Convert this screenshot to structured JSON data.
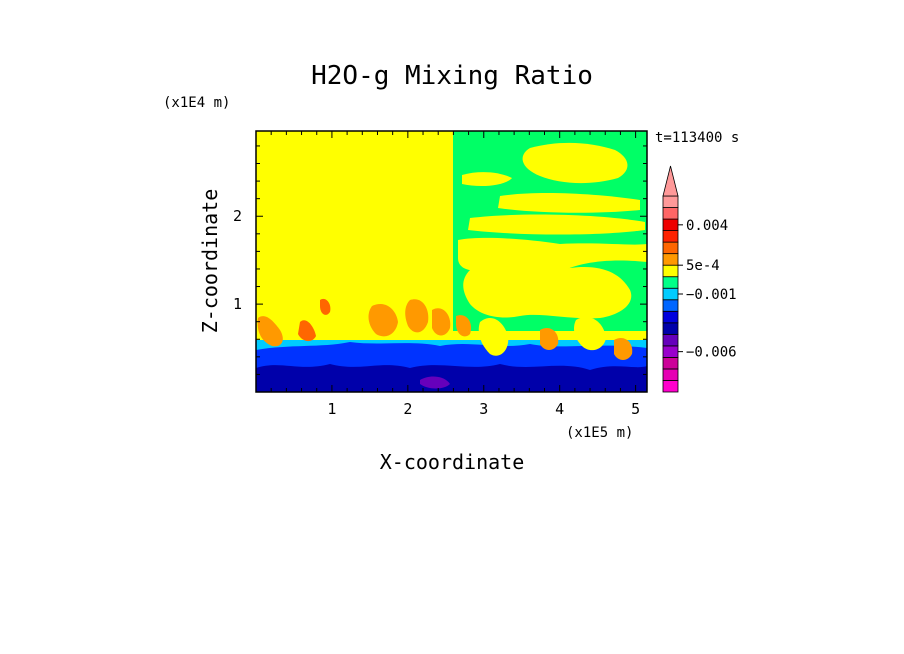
{
  "chart_data": {
    "type": "heatmap",
    "title": "H2O-g Mixing Ratio",
    "xlabel": "X-coordinate",
    "ylabel": "Z-coordinate",
    "x_scale_label": "(x1E5 m)",
    "y_scale_label": "(x1E4 m)",
    "time_label": "t=113400 s",
    "xlim": [
      0.0,
      5.15
    ],
    "ylim": [
      0.0,
      2.97
    ],
    "x_ticks": [
      {
        "value": 1,
        "label": "1"
      },
      {
        "value": 2,
        "label": "2"
      },
      {
        "value": 3,
        "label": "3"
      },
      {
        "value": 4,
        "label": "4"
      },
      {
        "value": 5,
        "label": "5"
      }
    ],
    "y_ticks": [
      {
        "value": 1,
        "label": "1"
      },
      {
        "value": 2,
        "label": "2"
      }
    ],
    "colorbar": {
      "levels": [
        -0.0085,
        -0.0075,
        -0.0065,
        -0.0055,
        -0.0045,
        -0.0035,
        -0.0025,
        -0.0015,
        -0.0005,
        0.0,
        0.0005,
        0.0015,
        0.0025,
        0.0035,
        0.0045,
        0.0055
      ],
      "colors": [
        "#ff00cc",
        "#e600b3",
        "#cc0099",
        "#9900cc",
        "#6600bb",
        "#0000aa",
        "#0000dd",
        "#0066ff",
        "#00ccff",
        "#00ff88",
        "#ffff00",
        "#ff9900",
        "#ff6600",
        "#ff2200",
        "#ee0000",
        "#ff6666",
        "#ff9999"
      ],
      "labels": [
        {
          "value": 0.004,
          "label": "0.004"
        },
        {
          "value": 0.0005,
          "label": "5e-4"
        },
        {
          "value": -0.001,
          "label": "−0.001"
        },
        {
          "value": -0.006,
          "label": "−0.006"
        }
      ],
      "extend": "max"
    },
    "regions": [
      {
        "name": "moist-upper-left",
        "color": "#ffff00",
        "x": [
          0.0,
          2.6
        ],
        "z": [
          0.65,
          2.97
        ]
      },
      {
        "name": "mixed-upper-right",
        "color": "#00ff66",
        "x": [
          2.6,
          5.15
        ],
        "z": [
          0.6,
          2.97
        ]
      },
      {
        "name": "dry-boundary-layer",
        "color": "#0000dd",
        "x": [
          0.0,
          5.15
        ],
        "z": [
          0.0,
          0.6
        ]
      }
    ]
  }
}
